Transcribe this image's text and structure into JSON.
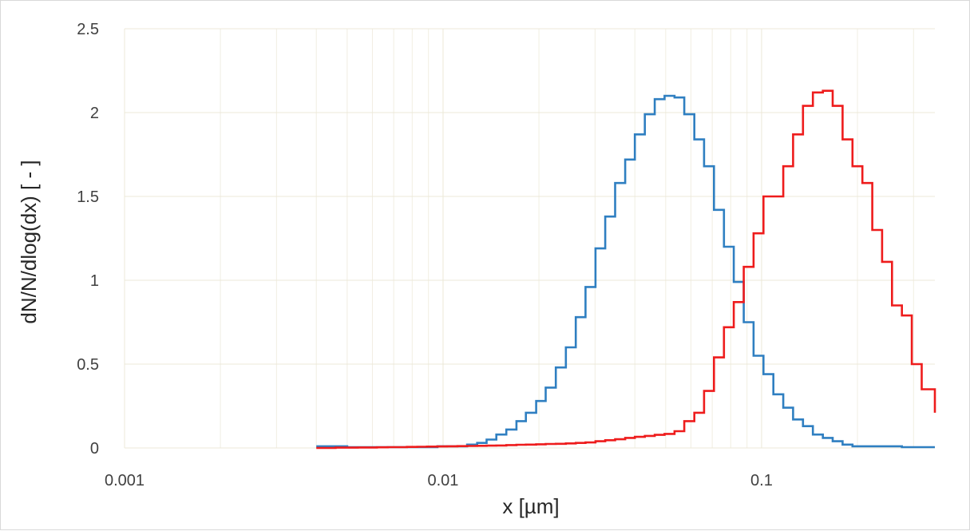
{
  "chart_data": {
    "type": "line",
    "step": true,
    "xscale": "log",
    "xlabel": "x [µm]",
    "ylabel": "dN/N/dlog(dx)  [ - ]",
    "xlim": [
      0.001,
      0.35
    ],
    "ylim": [
      0,
      2.5
    ],
    "x_ticks": [
      {
        "value": 0.001,
        "label": "0.001"
      },
      {
        "value": 0.01,
        "label": "0.01"
      },
      {
        "value": 0.1,
        "label": "0.1"
      }
    ],
    "y_ticks": [
      {
        "value": 0,
        "label": "0"
      },
      {
        "value": 0.5,
        "label": "0.5"
      },
      {
        "value": 1,
        "label": "1"
      },
      {
        "value": 1.5,
        "label": "1.5"
      },
      {
        "value": 2,
        "label": "2"
      },
      {
        "value": 2.5,
        "label": "2.5"
      }
    ],
    "grid": {
      "major": true,
      "minor_x": true
    },
    "legend": "none",
    "series": [
      {
        "color": "#2f7fc1",
        "x": [
          0.004,
          0.0043,
          0.0046,
          0.005,
          0.0054,
          0.0058,
          0.0062,
          0.0067,
          0.0072,
          0.0077,
          0.0083,
          0.0089,
          0.0096,
          0.0103,
          0.0111,
          0.0119,
          0.0128,
          0.0137,
          0.0147,
          0.0158,
          0.017,
          0.0182,
          0.0196,
          0.021,
          0.0226,
          0.0243,
          0.0261,
          0.028,
          0.0301,
          0.0323,
          0.0347,
          0.0373,
          0.04,
          0.043,
          0.0462,
          0.0496,
          0.0533,
          0.0572,
          0.0615,
          0.066,
          0.0709,
          0.0762,
          0.0818,
          0.0879,
          0.0944,
          0.1014,
          0.1089,
          0.117,
          0.1256,
          0.1349,
          0.1449,
          0.1557,
          0.1672,
          0.1796,
          0.1929,
          0.2072,
          0.2226,
          0.239,
          0.2567,
          0.2758,
          0.2962,
          0.3182,
          0.35
        ],
        "y": [
          0.01,
          0.01,
          0.01,
          0.005,
          0.005,
          0.005,
          0.005,
          0.005,
          0.005,
          0.005,
          0.005,
          0.005,
          0.01,
          0.01,
          0.01,
          0.02,
          0.03,
          0.05,
          0.08,
          0.11,
          0.16,
          0.21,
          0.28,
          0.36,
          0.48,
          0.6,
          0.78,
          0.96,
          1.19,
          1.38,
          1.58,
          1.72,
          1.87,
          1.99,
          2.08,
          2.1,
          2.09,
          1.99,
          1.84,
          1.68,
          1.42,
          1.2,
          0.99,
          0.75,
          0.55,
          0.44,
          0.32,
          0.24,
          0.17,
          0.13,
          0.08,
          0.06,
          0.04,
          0.02,
          0.01,
          0.01,
          0.01,
          0.01,
          0.01,
          0.005,
          0.005,
          0.005,
          0.005
        ]
      },
      {
        "color": "#ee1c1c",
        "x": [
          0.004,
          0.0043,
          0.0046,
          0.005,
          0.0054,
          0.0058,
          0.0062,
          0.0067,
          0.0072,
          0.0077,
          0.0083,
          0.0089,
          0.0096,
          0.0103,
          0.0111,
          0.0119,
          0.0128,
          0.0137,
          0.0147,
          0.0158,
          0.017,
          0.0182,
          0.0196,
          0.021,
          0.0226,
          0.0243,
          0.0261,
          0.028,
          0.0301,
          0.0323,
          0.0347,
          0.0373,
          0.04,
          0.043,
          0.0462,
          0.0496,
          0.0533,
          0.0572,
          0.0615,
          0.066,
          0.0709,
          0.0762,
          0.0818,
          0.0879,
          0.0944,
          0.1014,
          0.1089,
          0.117,
          0.1256,
          0.1349,
          0.1449,
          0.1557,
          0.1672,
          0.1796,
          0.1929,
          0.2072,
          0.2226,
          0.239,
          0.2567,
          0.2758,
          0.2962,
          0.3182,
          0.35
        ],
        "y": [
          0.0,
          0.0,
          0.002,
          0.002,
          0.003,
          0.003,
          0.004,
          0.005,
          0.005,
          0.006,
          0.007,
          0.008,
          0.009,
          0.01,
          0.011,
          0.012,
          0.013,
          0.014,
          0.015,
          0.017,
          0.019,
          0.02,
          0.022,
          0.024,
          0.025,
          0.027,
          0.03,
          0.033,
          0.04,
          0.046,
          0.052,
          0.06,
          0.066,
          0.072,
          0.078,
          0.084,
          0.1,
          0.16,
          0.21,
          0.34,
          0.54,
          0.72,
          0.87,
          1.08,
          1.28,
          1.5,
          1.5,
          1.68,
          1.87,
          2.04,
          2.12,
          2.13,
          2.04,
          1.84,
          1.68,
          1.58,
          1.3,
          1.11,
          0.85,
          0.79,
          0.5,
          0.35,
          0.21
        ]
      }
    ]
  }
}
